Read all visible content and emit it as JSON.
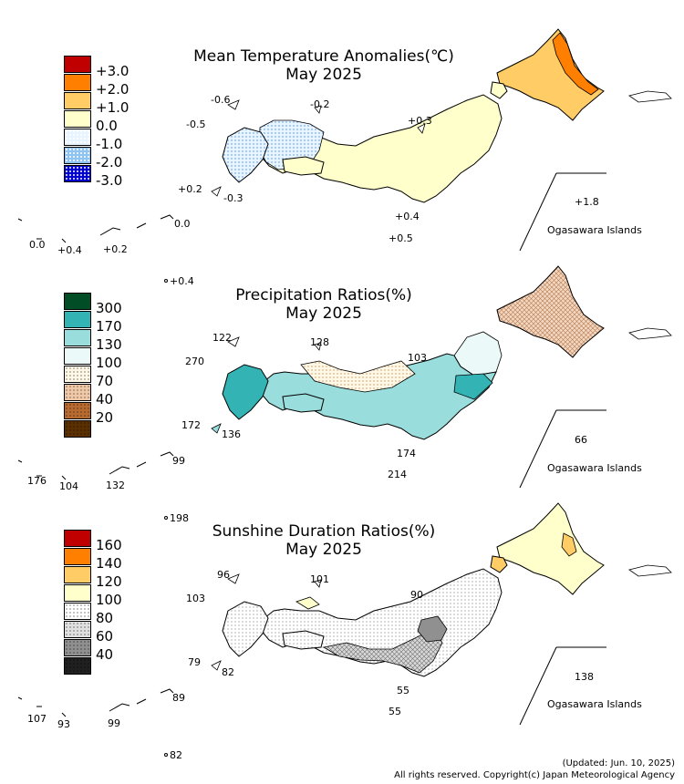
{
  "panels": [
    {
      "id": "temperature",
      "title_line1": "Mean Temperature Anomalies(℃)",
      "title_line2": "May 2025",
      "legend": {
        "labels": [
          "+3.0",
          "+2.0",
          "+1.0",
          "0.0",
          "-1.0",
          "-2.0",
          "-3.0"
        ],
        "colors": [
          "#c00000",
          "#ff8000",
          "#ffcc66",
          "#ffffcc",
          "#e8f4ff",
          "#8fc3f0",
          "#0000cc"
        ]
      },
      "values": [
        "-0.6",
        "-0.2",
        "-0.5",
        "+0.3",
        "+0.2",
        "-0.3",
        "+1.8",
        "+0.4",
        "+0.5",
        "0.0",
        "0.0",
        "+0.4",
        "+0.2",
        "+0.4"
      ],
      "ogasawara_label": "Ogasawara Islands"
    },
    {
      "id": "precipitation",
      "title_line1": "Precipitation Ratios(%)",
      "title_line2": "May 2025",
      "legend": {
        "labels": [
          "300",
          "170",
          "130",
          "100",
          "70",
          "40",
          "20"
        ],
        "colors": [
          "#004d26",
          "#33b3b3",
          "#99dddd",
          "#ecf9f9",
          "#fff8e6",
          "#f0c8a8",
          "#b86b30",
          "#5a3000"
        ]
      },
      "values": [
        "122",
        "128",
        "270",
        "103",
        "172",
        "136",
        "66",
        "174",
        "214",
        "99",
        "176",
        "104",
        "132",
        "198"
      ],
      "ogasawara_label": "Ogasawara Islands"
    },
    {
      "id": "sunshine",
      "title_line1": "Sunshine Duration Ratios(%)",
      "title_line2": "May 2025",
      "legend": {
        "labels": [
          "160",
          "140",
          "120",
          "100",
          "80",
          "60",
          "40"
        ],
        "colors": [
          "#c00000",
          "#ff8000",
          "#ffcc66",
          "#ffffcc",
          "#ffffff",
          "#e0e0e0",
          "#909090",
          "#202020"
        ]
      },
      "values": [
        "96",
        "101",
        "103",
        "90",
        "79",
        "82",
        "138",
        "55",
        "55",
        "89",
        "107",
        "93",
        "99",
        "82"
      ],
      "ogasawara_label": "Ogasawara Islands"
    }
  ],
  "footer": {
    "updated": "(Updated: Jun. 10, 2025)",
    "copyright": "All rights reserved. Copyright(c) Japan Meteorological Agency"
  }
}
